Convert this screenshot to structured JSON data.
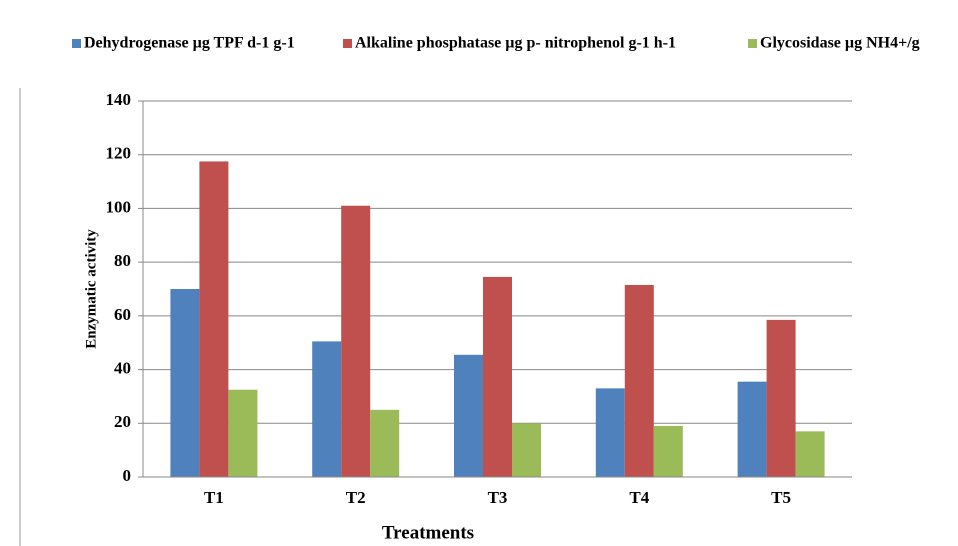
{
  "chart_data": {
    "type": "bar",
    "categories": [
      "T1",
      "T2",
      "T3",
      "T4",
      "T5"
    ],
    "series": [
      {
        "name": "Dehydrogenase µg TPF d-1 g-1",
        "color": "#4f81bd",
        "values": [
          70,
          50.5,
          45.5,
          33,
          35.5
        ]
      },
      {
        "name": "Alkaline phosphatase µg p- nitrophenol g-1 h-1",
        "color": "#c0504d",
        "values": [
          117.5,
          101,
          74.5,
          71.5,
          58.5
        ]
      },
      {
        "name": "Glycosidase µg NH4+/g",
        "color": "#9bbb59",
        "values": [
          32.5,
          25,
          20,
          19,
          17
        ]
      }
    ],
    "ylim": [
      0,
      140
    ],
    "yticks": [
      0,
      20,
      40,
      60,
      80,
      100,
      120,
      140
    ],
    "ylabel": "Enzymatic activity",
    "xlabel": "Treatments",
    "grid": true,
    "legend": "top"
  }
}
